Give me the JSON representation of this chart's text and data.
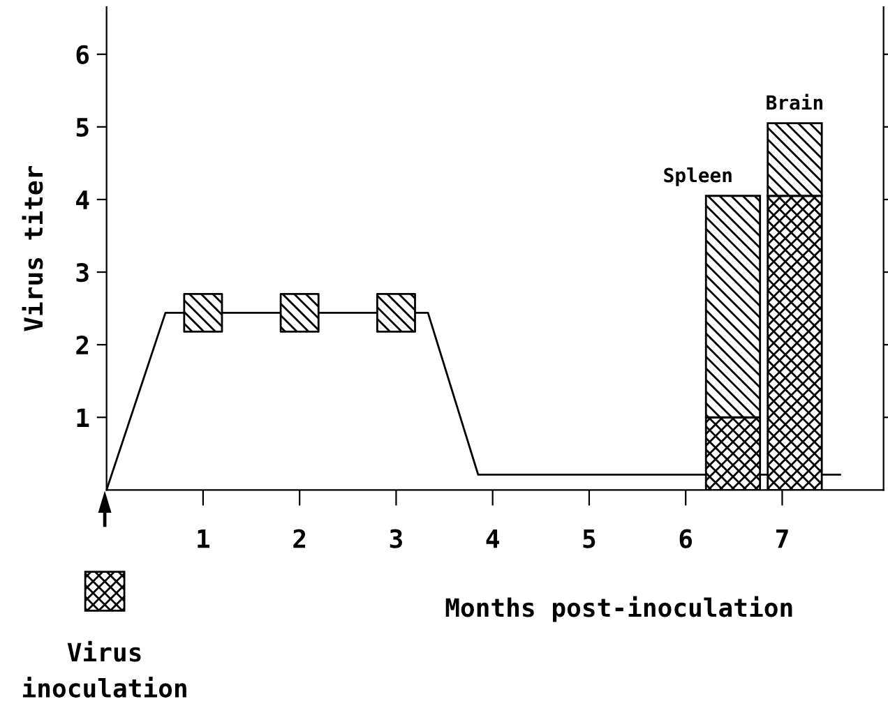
{
  "chart_data": {
    "type": "bar",
    "stacked": true,
    "xlabel": "Months post-inoculation",
    "ylabel": "Virus titer",
    "series": [
      {
        "type": "line",
        "color": "#000000",
        "x": [
          0,
          0.61,
          3.33,
          3.85,
          7.6
        ],
        "values": [
          0,
          2.44,
          2.44,
          0.21,
          0.21
        ]
      },
      {
        "type": "scatter",
        "marker": "square",
        "color": "#000000",
        "x": [
          1,
          2,
          3
        ],
        "values": [
          2.44,
          2.44,
          2.44
        ]
      },
      {
        "color": "#000000",
        "x": [
          6.49,
          7.13
        ],
        "values": [
          1.0,
          4.05
        ]
      },
      {
        "color": "#000000",
        "x": [
          6.49,
          7.13
        ],
        "values": [
          3.05,
          1.0
        ]
      }
    ],
    "xlim": [
      0,
      8.05
    ],
    "xticks": [
      1,
      2,
      3,
      4,
      5,
      6,
      7
    ],
    "ylim": [
      0,
      6.65
    ],
    "yticks": [
      1,
      2,
      3,
      4,
      5,
      6
    ],
    "annotations": [
      {
        "text": "Spleen",
        "x": 6.49,
        "y": 4.05
      },
      {
        "text": "Brain",
        "x": 7.13,
        "y": 5.05
      },
      "Virus\ninoculation"
    ]
  }
}
